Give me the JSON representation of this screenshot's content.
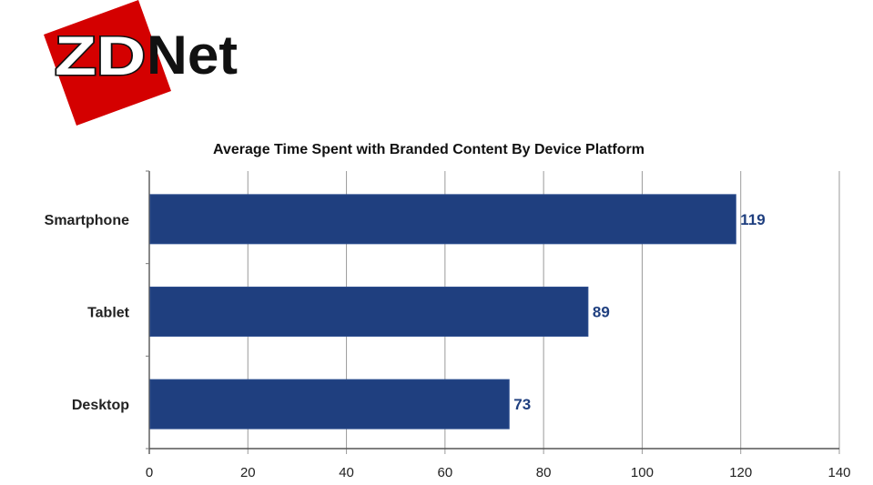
{
  "logo": {
    "text_zd": "ZD",
    "text_net": "Net",
    "red": "#d40000",
    "black": "#111111"
  },
  "chart_data": {
    "type": "bar",
    "orientation": "horizontal",
    "title": "Average Time Spent with Branded Content By Device Platform",
    "categories": [
      "Smartphone",
      "Tablet",
      "Desktop"
    ],
    "values": [
      119,
      89,
      73
    ],
    "data_labels": [
      "119",
      "89",
      "73"
    ],
    "xlabel": "",
    "ylabel": "",
    "xlim": [
      0,
      140
    ],
    "xticks": [
      0,
      20,
      40,
      60,
      80,
      100,
      120,
      140
    ],
    "grid": "vertical",
    "legend": "none",
    "bar_color": "#1f3f7f",
    "label_color": "#1f3f7f"
  }
}
